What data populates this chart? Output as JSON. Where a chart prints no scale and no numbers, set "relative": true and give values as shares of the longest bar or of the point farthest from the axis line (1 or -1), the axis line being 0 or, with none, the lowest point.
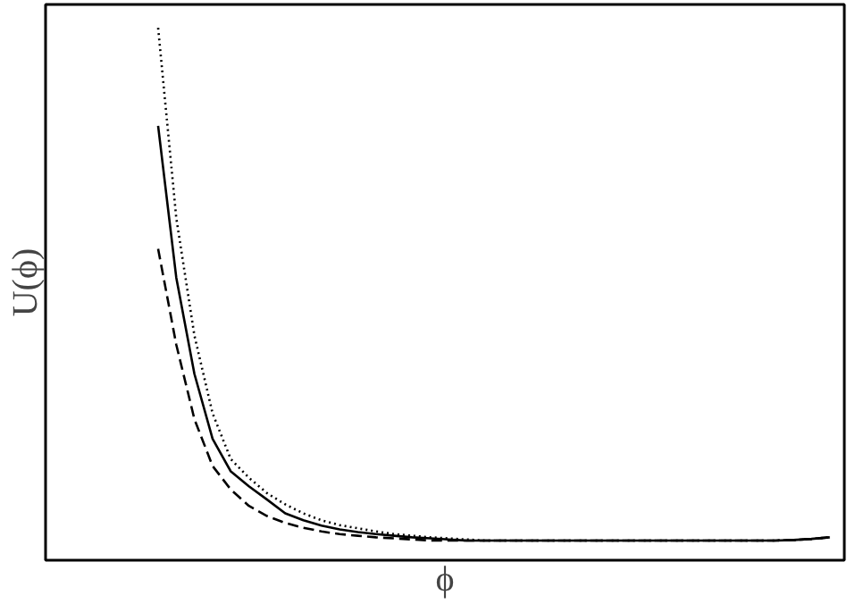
{
  "chart_data": {
    "type": "line",
    "xlabel": "ϕ",
    "ylabel": "U(ϕ)",
    "relative": true,
    "categories": [
      null,
      null,
      null,
      null,
      null,
      null,
      null,
      null,
      null,
      null,
      null,
      null,
      null,
      null,
      null,
      null,
      null,
      null,
      null,
      null,
      null,
      null,
      null,
      null,
      null,
      null,
      null,
      null,
      null,
      null,
      null,
      null,
      null,
      null,
      null,
      null,
      null,
      null,
      null,
      null,
      null,
      null,
      null,
      null
    ],
    "series": [
      {
        "color": "#000000",
        "line_style": "solid",
        "values": [
          null,
          null,
          null,
          null,
          null,
          null,
          0.816,
          0.531,
          0.35,
          0.228,
          0.167,
          0.139,
          0.114,
          0.088,
          0.075,
          0.065,
          0.058,
          0.053,
          0.049,
          0.046,
          0.043,
          0.041,
          0.039,
          0.037,
          0.037,
          0.037,
          0.037,
          0.037,
          0.037,
          0.037,
          0.037,
          0.037,
          0.037,
          0.037,
          0.037,
          0.037,
          0.037,
          0.037,
          0.037,
          0.037,
          0.037,
          0.038,
          0.04,
          0.043
        ]
      },
      {
        "color": "#000000",
        "line_style": "dashed",
        "values": [
          null,
          null,
          null,
          null,
          null,
          null,
          0.585,
          0.405,
          0.265,
          0.177,
          0.133,
          0.102,
          0.083,
          0.07,
          0.061,
          0.054,
          0.049,
          0.046,
          0.043,
          0.041,
          0.039,
          0.037,
          0.037,
          0.037,
          0.037,
          0.037,
          0.037,
          0.037,
          0.037,
          0.037,
          0.037,
          0.037,
          0.037,
          0.037,
          0.037,
          0.037,
          0.037,
          0.037,
          0.037,
          0.037,
          0.037,
          0.038,
          0.04,
          0.043
        ]
      },
      {
        "color": "#000000",
        "line_style": "dotted",
        "values": [
          null,
          null,
          null,
          null,
          null,
          null,
          1.0,
          0.643,
          0.422,
          0.276,
          0.19,
          0.155,
          0.126,
          0.105,
          0.088,
          0.075,
          0.066,
          0.06,
          0.054,
          0.049,
          0.046,
          0.043,
          0.041,
          0.039,
          0.037,
          0.037,
          0.037,
          0.037,
          0.037,
          0.037,
          0.037,
          0.037,
          0.037,
          0.037,
          0.037,
          0.037,
          0.037,
          0.037,
          0.037,
          0.037,
          0.037,
          0.038,
          0.04,
          0.043
        ]
      }
    ]
  }
}
